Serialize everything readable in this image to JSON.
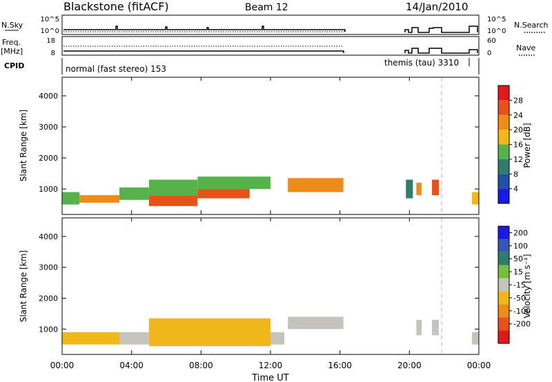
{
  "header": {
    "title": "Blackstone (fitACF)",
    "beam": "Beam 12",
    "date": "14/Jan/2010"
  },
  "colors": {
    "power": [
      "#1a1ae6",
      "#1f4fa8",
      "#2f7d6a",
      "#56b24a",
      "#f2b81a",
      "#f08a1a",
      "#e8521a",
      "#e01a1a"
    ],
    "velocity": [
      "#1a1ae6",
      "#3457b8",
      "#2f7d6a",
      "#78c03c",
      "#c4c4bc",
      "#f2b81a",
      "#f08a1a",
      "#e8521a",
      "#e01a1a"
    ],
    "sky_line": "#000000",
    "dashed_marker": "#b4b4b4"
  },
  "panels": {
    "nsky": {
      "label": "N.Sky",
      "left_ticks": [
        "10^5",
        "10^0"
      ],
      "right_ticks": [
        "10^5",
        "10^0"
      ],
      "right_label": "N.Search"
    },
    "freq": {
      "label_line1": "Freq.",
      "label_line2": "[MHz]",
      "left_ticks": [
        "18",
        "8"
      ],
      "right_ticks": [
        "60",
        "0"
      ],
      "right_label": "Nave"
    },
    "cpid": {
      "label": "CPID",
      "mode1": "normal (fast stereo) 153",
      "mode2": "themis (tau) 3310"
    }
  },
  "chart_data": [
    {
      "type": "heatmap",
      "name": "power",
      "ylabel": "Slant Range [km]",
      "xlabel": "",
      "ylim": [
        180,
        4600
      ],
      "yticks": [
        "1000",
        "2000",
        "3000",
        "4000"
      ],
      "colorbar_label": "Power [dB]",
      "colorbar_ticks": [
        "4",
        "8",
        "12",
        "16",
        "20",
        "24",
        "28"
      ],
      "blocks": [
        {
          "t0": 0.0,
          "t1": 1.0,
          "r0": 500,
          "r1": 900,
          "v": 14
        },
        {
          "t0": 1.0,
          "t1": 3.3,
          "r0": 560,
          "r1": 800,
          "v": 22
        },
        {
          "t0": 3.3,
          "t1": 5.0,
          "r0": 650,
          "r1": 1050,
          "v": 12
        },
        {
          "t0": 5.0,
          "t1": 7.8,
          "r0": 450,
          "r1": 780,
          "v": 27
        },
        {
          "t0": 5.0,
          "t1": 7.8,
          "r0": 780,
          "r1": 1300,
          "v": 13
        },
        {
          "t0": 7.8,
          "t1": 10.8,
          "r0": 700,
          "r1": 1000,
          "v": 25
        },
        {
          "t0": 7.8,
          "t1": 12.0,
          "r0": 1000,
          "r1": 1400,
          "v": 15
        },
        {
          "t0": 13.0,
          "t1": 16.2,
          "r0": 900,
          "r1": 1350,
          "v": 21
        },
        {
          "t0": 19.8,
          "t1": 20.2,
          "r0": 700,
          "r1": 1300,
          "v": 10
        },
        {
          "t0": 20.4,
          "t1": 20.7,
          "r0": 800,
          "r1": 1200,
          "v": 22
        },
        {
          "t0": 21.3,
          "t1": 21.7,
          "r0": 800,
          "r1": 1300,
          "v": 24
        },
        {
          "t0": 23.6,
          "t1": 24.0,
          "r0": 500,
          "r1": 900,
          "v": 16
        }
      ]
    },
    {
      "type": "heatmap",
      "name": "velocity",
      "ylabel": "Slant Range [km]",
      "xlabel": "Time UT",
      "ylim": [
        180,
        4600
      ],
      "yticks": [
        "1000",
        "2000",
        "3000",
        "4000"
      ],
      "xticks": [
        "00:00",
        "04:00",
        "08:00",
        "12:00",
        "16:00",
        "20:00",
        "00:00"
      ],
      "colorbar_label": "Velocity [m s⁻¹]",
      "colorbar_ticks": [
        "200",
        "100",
        "50",
        "15",
        "-15",
        "-50",
        "-100",
        "-200"
      ],
      "blocks": [
        {
          "t0": 0.0,
          "t1": 3.3,
          "r0": 500,
          "r1": 900,
          "v": -30
        },
        {
          "t0": 3.3,
          "t1": 5.0,
          "r0": 500,
          "r1": 900,
          "v": 0
        },
        {
          "t0": 5.0,
          "t1": 12.0,
          "r0": 450,
          "r1": 1350,
          "v": -30
        },
        {
          "t0": 12.0,
          "t1": 12.8,
          "r0": 500,
          "r1": 900,
          "v": 0
        },
        {
          "t0": 13.0,
          "t1": 16.2,
          "r0": 1000,
          "r1": 1400,
          "v": 0
        },
        {
          "t0": 20.4,
          "t1": 20.7,
          "r0": 800,
          "r1": 1300,
          "v": 0
        },
        {
          "t0": 21.3,
          "t1": 21.7,
          "r0": 800,
          "r1": 1300,
          "v": 0
        },
        {
          "t0": 23.6,
          "t1": 24.0,
          "r0": 500,
          "r1": 900,
          "v": 0
        }
      ]
    }
  ]
}
